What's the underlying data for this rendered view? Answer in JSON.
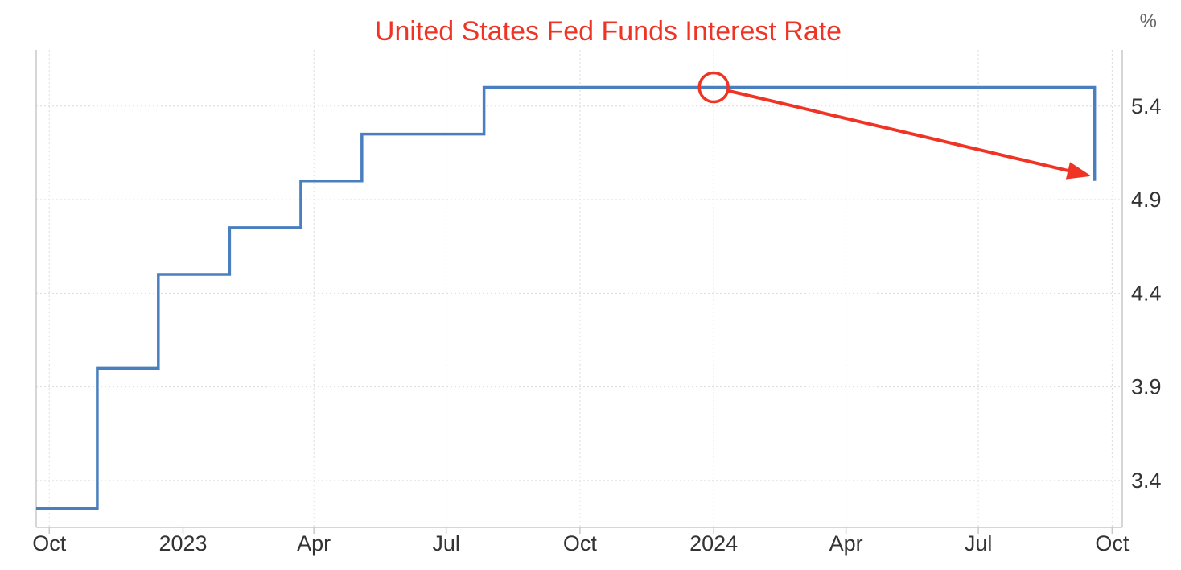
{
  "chart_data": {
    "type": "line",
    "title": "United States Fed Funds Interest Rate",
    "unit": "%",
    "line_style": "step",
    "xlabel": "",
    "ylabel": "",
    "x_ticks": [
      {
        "date": "2022-10-01",
        "label": "Oct"
      },
      {
        "date": "2023-01-01",
        "label": "2023"
      },
      {
        "date": "2023-04-01",
        "label": "Apr"
      },
      {
        "date": "2023-07-01",
        "label": "Jul"
      },
      {
        "date": "2023-10-01",
        "label": "Oct"
      },
      {
        "date": "2024-01-01",
        "label": "2024"
      },
      {
        "date": "2024-04-01",
        "label": "Apr"
      },
      {
        "date": "2024-07-01",
        "label": "Jul"
      },
      {
        "date": "2024-10-01",
        "label": "Oct"
      }
    ],
    "y_ticks": [
      3.4,
      3.9,
      4.4,
      4.9,
      5.4
    ],
    "xlim": [
      "2022-09-22",
      "2024-10-08"
    ],
    "ylim": [
      3.15,
      5.7
    ],
    "grid": true,
    "legend": "none",
    "series": [
      {
        "color": "#4a7fbf",
        "points": [
          {
            "x": "2022-09-22",
            "y": 3.25
          },
          {
            "x": "2022-11-03",
            "y": 4.0
          },
          {
            "x": "2022-12-15",
            "y": 4.5
          },
          {
            "x": "2023-02-02",
            "y": 4.75
          },
          {
            "x": "2023-03-23",
            "y": 5.0
          },
          {
            "x": "2023-05-04",
            "y": 5.25
          },
          {
            "x": "2023-07-27",
            "y": 5.5
          },
          {
            "x": "2024-09-19",
            "y": 5.0
          }
        ]
      }
    ],
    "annotations": [
      {
        "type": "circle",
        "x": "2024-01-01",
        "y": 5.5,
        "color": "#ef3425"
      },
      {
        "type": "arrow",
        "from": {
          "x": "2024-01-01",
          "y": 5.5
        },
        "to": {
          "x": "2024-09-19",
          "y": 5.0
        },
        "color": "#ef3425"
      }
    ]
  },
  "colors": {
    "title": "#ef3425",
    "series": "#4a7fbf",
    "annotation": "#ef3425",
    "grid": "#dcdcdc",
    "axis": "#c8c8c8",
    "tick_text": "#333333"
  }
}
